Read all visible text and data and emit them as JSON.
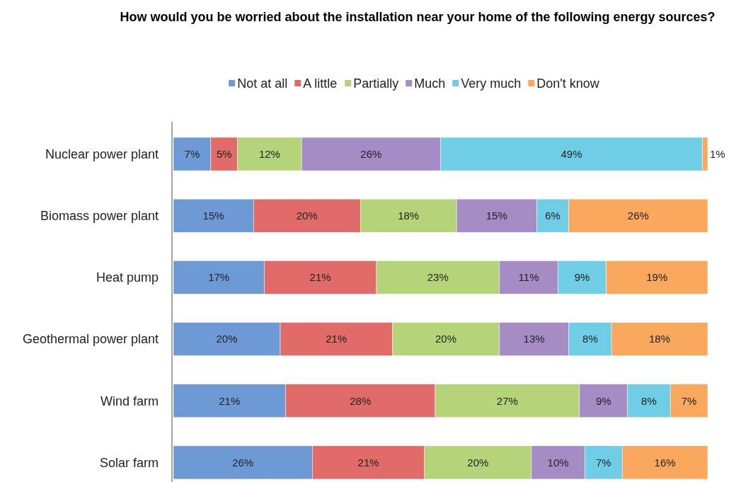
{
  "chart_data": {
    "type": "bar",
    "orientation": "horizontal",
    "stacked": true,
    "legend": "top",
    "title": "How would you be worried about the installation near your home of the following energy sources?",
    "categories": [
      "Nuclear power plant",
      "Biomass power plant",
      "Heat pump",
      "Geothermal power plant",
      "Wind farm",
      "Solar farm"
    ],
    "series": [
      {
        "name": "Not at all",
        "color": "#6d9ad4",
        "values": [
          7,
          15,
          17,
          20,
          21,
          26
        ],
        "value_labels": [
          "7%",
          "15%",
          "17%",
          "20%",
          "21%",
          "26%"
        ]
      },
      {
        "name": "A little",
        "color": "#e06b68",
        "values": [
          5,
          20,
          21,
          21,
          28,
          21
        ],
        "value_labels": [
          "5%",
          "20%",
          "21%",
          "21%",
          "28%",
          "21%"
        ]
      },
      {
        "name": "Partially",
        "color": "#b5d47a",
        "values": [
          12,
          18,
          23,
          20,
          27,
          20
        ],
        "value_labels": [
          "12%",
          "18%",
          "23%",
          "20%",
          "27%",
          "20%"
        ]
      },
      {
        "name": "Much",
        "color": "#a58cc4",
        "values": [
          26,
          15,
          11,
          13,
          9,
          10
        ],
        "value_labels": [
          "26%",
          "15%",
          "11%",
          "13%",
          "9%",
          "10%"
        ]
      },
      {
        "name": "Very much",
        "color": "#6fcde6",
        "values": [
          49,
          6,
          9,
          8,
          8,
          7
        ],
        "value_labels": [
          "49%",
          "6%",
          "9%",
          "8%",
          "8%",
          "7%"
        ]
      },
      {
        "name": "Don't know",
        "color": "#f9a85e",
        "values": [
          1,
          26,
          19,
          18,
          7,
          16
        ],
        "value_labels": [
          "1%",
          "26%",
          "19%",
          "18%",
          "7%",
          "16%"
        ]
      }
    ]
  }
}
